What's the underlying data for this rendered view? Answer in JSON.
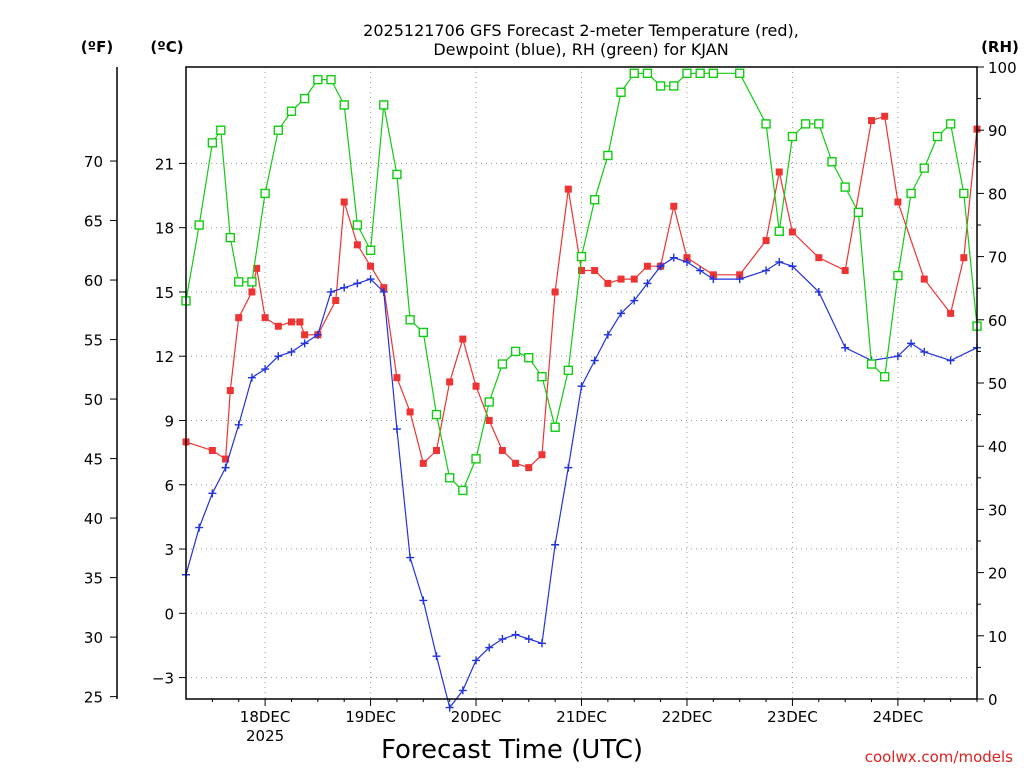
{
  "chart_data": {
    "type": "line",
    "title_line1": "2025121706 GFS Forecast 2-meter Temperature (red),",
    "title_line2": "Dewpoint (blue), RH (green) for KJAN",
    "xlabel": "Forecast Time (UTC)",
    "credit": "coolwx.com/models",
    "units": {
      "fahrenheit": "(ºF)",
      "celsius": "(ºC)",
      "rh": "(RH)"
    },
    "x_range_days": [
      17.25,
      24.75
    ],
    "celsius_range": [
      -4.0,
      25.5
    ],
    "rh_range": [
      0,
      100
    ],
    "x_ticks": [
      {
        "day": 18,
        "label": "18DEC",
        "sublabel": "2025"
      },
      {
        "day": 19,
        "label": "19DEC",
        "sublabel": ""
      },
      {
        "day": 20,
        "label": "20DEC",
        "sublabel": ""
      },
      {
        "day": 21,
        "label": "21DEC",
        "sublabel": ""
      },
      {
        "day": 22,
        "label": "22DEC",
        "sublabel": ""
      },
      {
        "day": 23,
        "label": "23DEC",
        "sublabel": ""
      },
      {
        "day": 24,
        "label": "24DEC",
        "sublabel": ""
      }
    ],
    "celsius_ticks": [
      {
        "value": -3,
        "label": "−3"
      },
      {
        "value": 0,
        "label": "0"
      },
      {
        "value": 3,
        "label": "3"
      },
      {
        "value": 6,
        "label": "6"
      },
      {
        "value": 9,
        "label": "9"
      },
      {
        "value": 12,
        "label": "12"
      },
      {
        "value": 15,
        "label": "15"
      },
      {
        "value": 18,
        "label": "18"
      },
      {
        "value": 21,
        "label": "21"
      }
    ],
    "fahrenheit_ticks": [
      {
        "value": 25,
        "label": "25"
      },
      {
        "value": 30,
        "label": "30"
      },
      {
        "value": 35,
        "label": "35"
      },
      {
        "value": 40,
        "label": "40"
      },
      {
        "value": 45,
        "label": "45"
      },
      {
        "value": 50,
        "label": "50"
      },
      {
        "value": 55,
        "label": "55"
      },
      {
        "value": 60,
        "label": "60"
      },
      {
        "value": 65,
        "label": "65"
      },
      {
        "value": 70,
        "label": "70"
      }
    ],
    "rh_ticks": [
      {
        "value": 0,
        "label": "0"
      },
      {
        "value": 10,
        "label": "10"
      },
      {
        "value": 20,
        "label": "20"
      },
      {
        "value": 30,
        "label": "30"
      },
      {
        "value": 40,
        "label": "40"
      },
      {
        "value": 50,
        "label": "50"
      },
      {
        "value": 60,
        "label": "60"
      },
      {
        "value": 70,
        "label": "70"
      },
      {
        "value": 80,
        "label": "80"
      },
      {
        "value": 90,
        "label": "90"
      },
      {
        "value": 100,
        "label": "100"
      }
    ],
    "series": [
      {
        "name": "2-meter Temperature",
        "unit": "celsius",
        "color": "#ee3333",
        "marker": "filled-square",
        "points": [
          [
            17.25,
            8.0
          ],
          [
            17.5,
            7.6
          ],
          [
            17.625,
            7.2
          ],
          [
            17.67,
            10.4
          ],
          [
            17.75,
            13.8
          ],
          [
            17.875,
            15.0
          ],
          [
            17.92,
            16.1
          ],
          [
            18.0,
            13.8
          ],
          [
            18.125,
            13.4
          ],
          [
            18.25,
            13.6
          ],
          [
            18.33,
            13.6
          ],
          [
            18.375,
            13.0
          ],
          [
            18.5,
            13.0
          ],
          [
            18.67,
            14.6
          ],
          [
            18.75,
            19.2
          ],
          [
            18.875,
            17.2
          ],
          [
            19.0,
            16.2
          ],
          [
            19.125,
            15.2
          ],
          [
            19.25,
            11.0
          ],
          [
            19.375,
            9.4
          ],
          [
            19.5,
            7.0
          ],
          [
            19.625,
            7.6
          ],
          [
            19.75,
            10.8
          ],
          [
            19.875,
            12.8
          ],
          [
            20.0,
            10.6
          ],
          [
            20.125,
            9.0
          ],
          [
            20.25,
            7.6
          ],
          [
            20.375,
            7.0
          ],
          [
            20.5,
            6.8
          ],
          [
            20.625,
            7.4
          ],
          [
            20.75,
            15.0
          ],
          [
            20.875,
            19.8
          ],
          [
            21.0,
            16.0
          ],
          [
            21.125,
            16.0
          ],
          [
            21.25,
            15.4
          ],
          [
            21.375,
            15.6
          ],
          [
            21.5,
            15.6
          ],
          [
            21.625,
            16.2
          ],
          [
            21.75,
            16.2
          ],
          [
            21.875,
            19.0
          ],
          [
            22.0,
            16.6
          ],
          [
            22.25,
            15.8
          ],
          [
            22.5,
            15.8
          ],
          [
            22.75,
            17.4
          ],
          [
            22.875,
            20.6
          ],
          [
            23.0,
            17.8
          ],
          [
            23.25,
            16.6
          ],
          [
            23.5,
            16.0
          ],
          [
            23.75,
            23.0
          ],
          [
            23.875,
            23.2
          ],
          [
            24.0,
            19.2
          ],
          [
            24.25,
            15.6
          ],
          [
            24.5,
            14.0
          ],
          [
            24.625,
            16.6
          ],
          [
            24.75,
            22.6
          ]
        ]
      },
      {
        "name": "Dewpoint",
        "unit": "celsius",
        "color": "#2233dd",
        "marker": "plus",
        "points": [
          [
            17.25,
            1.8
          ],
          [
            17.375,
            4.0
          ],
          [
            17.5,
            5.6
          ],
          [
            17.625,
            6.8
          ],
          [
            17.75,
            8.8
          ],
          [
            17.875,
            11.0
          ],
          [
            18.0,
            11.4
          ],
          [
            18.125,
            12.0
          ],
          [
            18.25,
            12.2
          ],
          [
            18.375,
            12.6
          ],
          [
            18.5,
            13.0
          ],
          [
            18.625,
            15.0
          ],
          [
            18.75,
            15.2
          ],
          [
            18.875,
            15.4
          ],
          [
            19.0,
            15.6
          ],
          [
            19.125,
            15.0
          ],
          [
            19.25,
            8.6
          ],
          [
            19.375,
            2.6
          ],
          [
            19.5,
            0.6
          ],
          [
            19.625,
            -2.0
          ],
          [
            19.75,
            -4.4
          ],
          [
            19.875,
            -3.6
          ],
          [
            20.0,
            -2.2
          ],
          [
            20.125,
            -1.6
          ],
          [
            20.25,
            -1.2
          ],
          [
            20.375,
            -1.0
          ],
          [
            20.5,
            -1.2
          ],
          [
            20.625,
            -1.4
          ],
          [
            20.75,
            3.2
          ],
          [
            20.875,
            6.8
          ],
          [
            21.0,
            10.6
          ],
          [
            21.125,
            11.8
          ],
          [
            21.25,
            13.0
          ],
          [
            21.375,
            14.0
          ],
          [
            21.5,
            14.6
          ],
          [
            21.625,
            15.4
          ],
          [
            21.75,
            16.2
          ],
          [
            21.875,
            16.6
          ],
          [
            22.0,
            16.4
          ],
          [
            22.125,
            16.0
          ],
          [
            22.25,
            15.6
          ],
          [
            22.5,
            15.6
          ],
          [
            22.75,
            16.0
          ],
          [
            22.875,
            16.4
          ],
          [
            23.0,
            16.2
          ],
          [
            23.25,
            15.0
          ],
          [
            23.5,
            12.4
          ],
          [
            23.75,
            11.8
          ],
          [
            24.0,
            12.0
          ],
          [
            24.125,
            12.6
          ],
          [
            24.25,
            12.2
          ],
          [
            24.5,
            11.8
          ],
          [
            24.75,
            12.4
          ]
        ]
      },
      {
        "name": "RH",
        "unit": "rh",
        "color": "#11cc11",
        "marker": "open-square",
        "points": [
          [
            17.25,
            63
          ],
          [
            17.375,
            75
          ],
          [
            17.5,
            88
          ],
          [
            17.58,
            90
          ],
          [
            17.67,
            73
          ],
          [
            17.75,
            66
          ],
          [
            17.875,
            66
          ],
          [
            18.0,
            80
          ],
          [
            18.125,
            90
          ],
          [
            18.25,
            93
          ],
          [
            18.375,
            95
          ],
          [
            18.5,
            98
          ],
          [
            18.625,
            98
          ],
          [
            18.75,
            94
          ],
          [
            18.875,
            75
          ],
          [
            19.0,
            71
          ],
          [
            19.125,
            94
          ],
          [
            19.25,
            83
          ],
          [
            19.375,
            60
          ],
          [
            19.5,
            58
          ],
          [
            19.625,
            45
          ],
          [
            19.75,
            35
          ],
          [
            19.875,
            33
          ],
          [
            20.0,
            38
          ],
          [
            20.125,
            47
          ],
          [
            20.25,
            53
          ],
          [
            20.375,
            55
          ],
          [
            20.5,
            54
          ],
          [
            20.625,
            51
          ],
          [
            20.75,
            43
          ],
          [
            20.875,
            52
          ],
          [
            21.0,
            70
          ],
          [
            21.125,
            79
          ],
          [
            21.25,
            86
          ],
          [
            21.375,
            96
          ],
          [
            21.5,
            99
          ],
          [
            21.625,
            99
          ],
          [
            21.75,
            97
          ],
          [
            21.875,
            97
          ],
          [
            22.0,
            99
          ],
          [
            22.125,
            99
          ],
          [
            22.25,
            99
          ],
          [
            22.5,
            99
          ],
          [
            22.75,
            91
          ],
          [
            22.875,
            74
          ],
          [
            23.0,
            89
          ],
          [
            23.125,
            91
          ],
          [
            23.25,
            91
          ],
          [
            23.375,
            85
          ],
          [
            23.5,
            81
          ],
          [
            23.625,
            77
          ],
          [
            23.75,
            53
          ],
          [
            23.875,
            51
          ],
          [
            24.0,
            67
          ],
          [
            24.125,
            80
          ],
          [
            24.25,
            84
          ],
          [
            24.375,
            89
          ],
          [
            24.5,
            91
          ],
          [
            24.625,
            80
          ],
          [
            24.75,
            59
          ]
        ]
      }
    ]
  }
}
